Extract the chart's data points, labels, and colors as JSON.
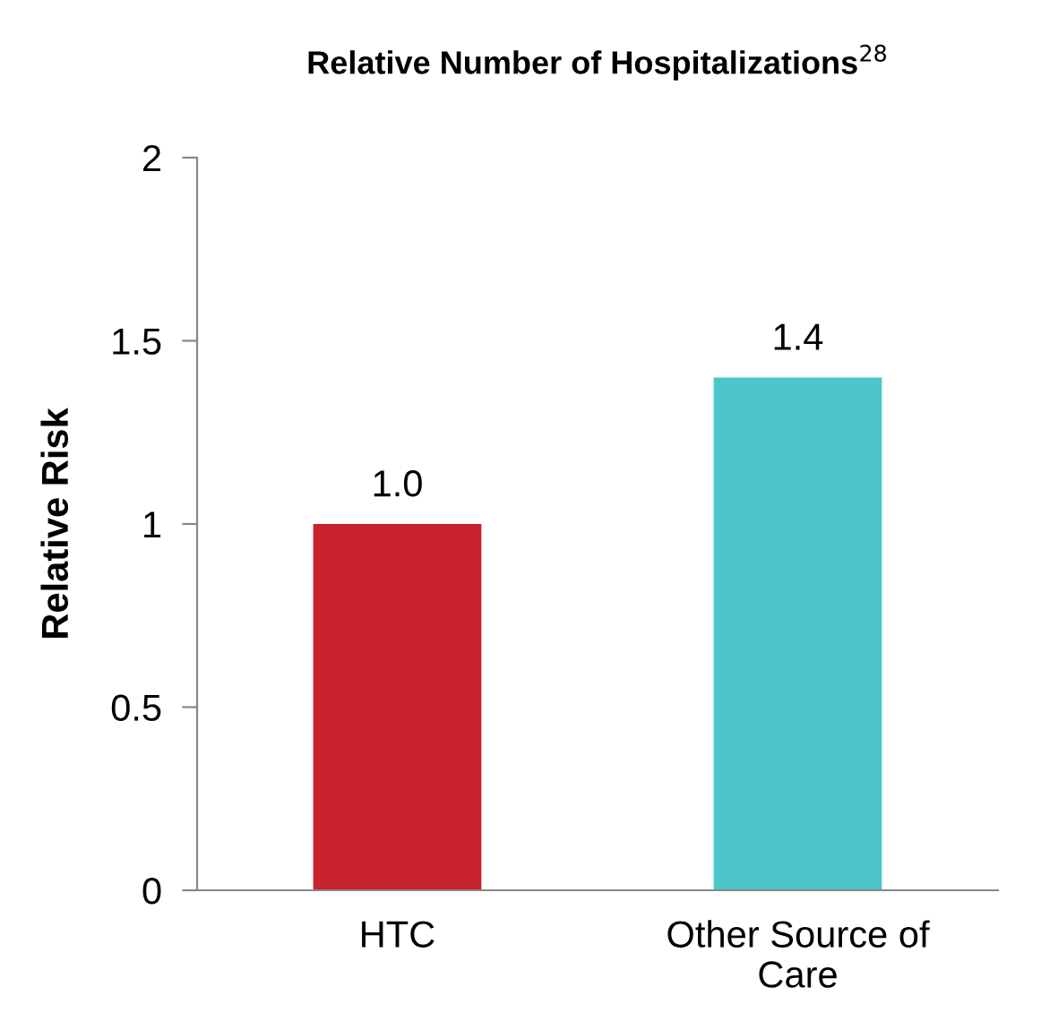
{
  "chart_data": {
    "type": "bar",
    "title": "Relative Number of Hospitalizations$^{28}$",
    "ylabel": "Relative Risk",
    "categories": [
      "HTC",
      "Other Source of\nCare"
    ],
    "values": [
      1.0,
      1.4
    ],
    "colors": [
      "#c8232c",
      "#4cc6c8"
    ],
    "value_labels": [
      "1.0",
      "1.4"
    ],
    "ylim": [
      0,
      2
    ],
    "yticks": [
      0,
      0.5,
      1,
      1.5,
      2
    ],
    "grid": false,
    "legend": false
  }
}
